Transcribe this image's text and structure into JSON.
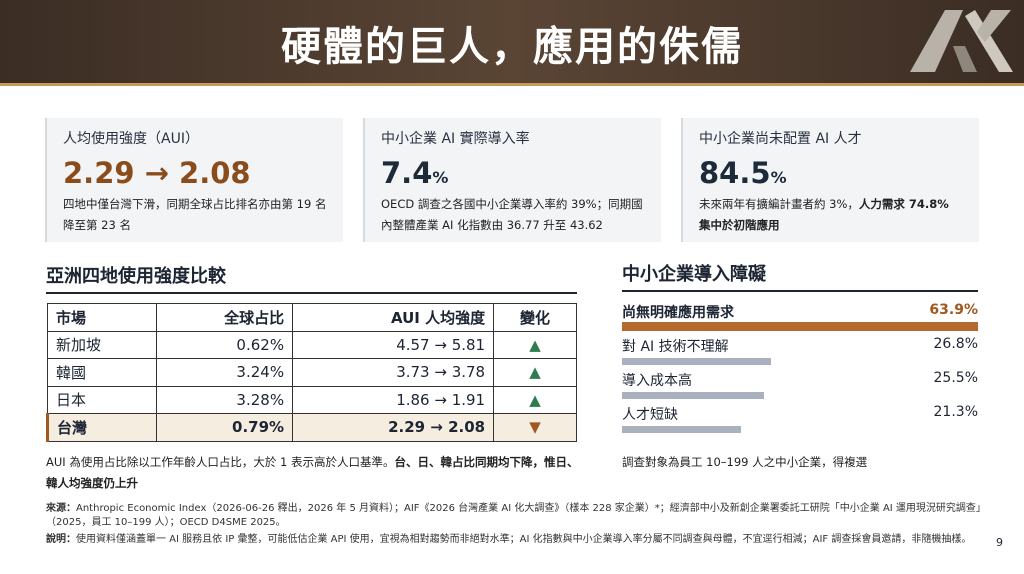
{
  "header": {
    "title": "硬體的巨人，應用的侏儒"
  },
  "cards": [
    {
      "label": "人均使用強度（AUI）",
      "value": "2.29 → 2.08",
      "desc": [
        {
          "text": "四地中僅台灣下滑，同期全球占比排名亦由第 19 名降至第 23 名",
          "bold": false
        }
      ]
    },
    {
      "label": "中小企業 AI 實際導入率",
      "value": "7.4",
      "unit": "%",
      "desc": [
        {
          "text": "OECD 調查之各國中小企業導入率約 39%；同期國內整體產業 AI 化指數由 36.77 升至 43.62",
          "bold": false
        }
      ]
    },
    {
      "label": "中小企業尚未配置 AI 人才",
      "value": "84.5",
      "unit": "%",
      "desc": [
        {
          "text": "未來兩年有擴編計畫者約 3%，",
          "bold": false
        },
        {
          "text": "人力需求 74.8% 集中於初階應用",
          "bold": true
        }
      ]
    }
  ],
  "table": {
    "title": "亞洲四地使用強度比較",
    "headers": [
      "市場",
      "全球占比",
      "AUI 人均強度",
      "變化"
    ],
    "rows": [
      [
        "新加坡",
        "0.62%",
        "4.57 → 5.81",
        "▲"
      ],
      [
        "韓國",
        "3.24%",
        "3.73 → 3.78",
        "▲"
      ],
      [
        "日本",
        "3.28%",
        "1.86 → 1.91",
        "▲"
      ],
      [
        "台灣",
        "0.79%",
        "2.29 → 2.08",
        "▼"
      ]
    ],
    "note": [
      {
        "text": "AUI 為使用占比除以工作年齡人口占比，大於 1 表示高於人口基準。",
        "bold": false
      },
      {
        "text": "台、日、韓占比同期均下降，惟日、韓人均強度仍上升",
        "bold": true
      }
    ]
  },
  "chart_data": {
    "type": "bar",
    "title": "中小企業導入障礙",
    "categories": [
      "尚無明確應用需求",
      "對 AI 技術不理解",
      "導入成本高",
      "人才短缺"
    ],
    "values": [
      63.9,
      26.8,
      25.5,
      21.3
    ],
    "value_labels": [
      "63.9%",
      "26.8%",
      "25.5%",
      "21.3%"
    ],
    "colors": [
      "#b46a2c",
      "#a9b1be",
      "#a9b1be",
      "#a9b1be"
    ],
    "note": "調查對象為員工 10–199 人之中小企業，得複選"
  },
  "footer": {
    "source_label": "來源：",
    "source": "Anthropic Economic Index（2026-06-26 釋出，2026 年 5 月資料）；AIF《2026 台灣產業 AI 化大調查》（樣本 228 家企業）*；經濟部中小及新創企業署委託工研院「中小企業 AI 運用現況研究調查」（2025，員工 10–199 人）；OECD D4SME 2025。",
    "note_label": "說明：",
    "note": "使用資料僅涵蓋單一 AI 服務且依 IP 彙整，可能低估企業 API 使用，宜視為相對趨勢而非絕對水準；AI 化指數與中小企業導入率分屬不同調查與母體，不宜逕行相減；AIF 調查採會員邀請，非隨機抽樣。",
    "page": "9"
  }
}
